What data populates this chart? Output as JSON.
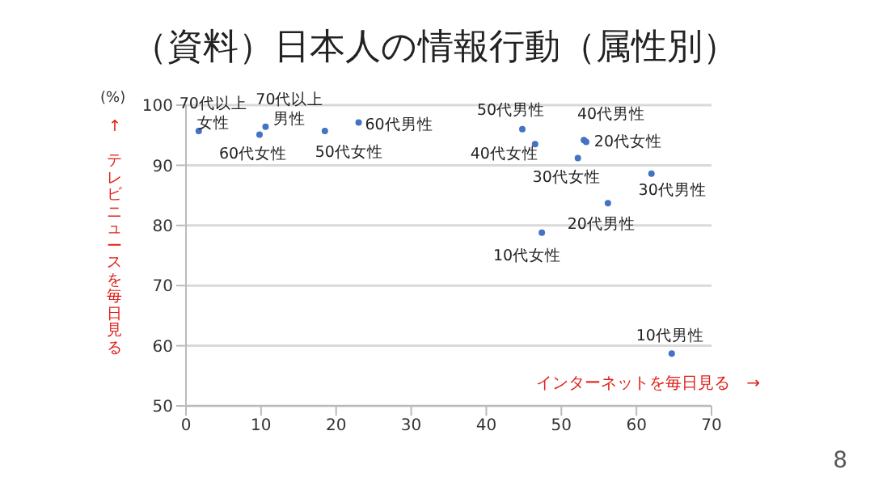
{
  "chart_data": {
    "type": "scatter",
    "title": "（資料）日本人の情報行動（属性別）",
    "xlabel": "インターネットを毎日見る　→",
    "ylabel": "↑　テレビニュースを毎日見る",
    "series": [
      {
        "color": "#4472c4",
        "x": [
          1.7,
          9.8,
          10.6,
          18.5,
          23.0,
          44.8,
          46.5,
          53.0,
          53.3,
          52.2,
          62.0,
          56.2,
          47.4,
          64.7
        ],
        "values": [
          95.7,
          95.1,
          96.4,
          95.7,
          97.1,
          96.0,
          93.5,
          94.2,
          93.9,
          91.2,
          88.6,
          83.7,
          78.8,
          58.7
        ]
      }
    ],
    "xlim": [
      0,
      70
    ],
    "xticks": [
      0,
      10,
      20,
      30,
      40,
      50,
      60,
      70
    ],
    "ylim": [
      50,
      100
    ],
    "yticks": [
      50,
      60,
      70,
      80,
      90,
      100
    ],
    "grid": "y",
    "marker": "circle",
    "annotations": [
      {
        "text": "70代以上女性",
        "x": 1.7,
        "y": 95.7
      },
      {
        "text": "60代女性",
        "x": 9.8,
        "y": 95.1
      },
      {
        "text": "70代以上男性",
        "x": 10.6,
        "y": 96.4
      },
      {
        "text": "50代女性",
        "x": 18.5,
        "y": 95.7
      },
      {
        "text": "60代男性",
        "x": 23.0,
        "y": 97.1
      },
      {
        "text": "50代男性",
        "x": 44.8,
        "y": 96.0
      },
      {
        "text": "40代女性",
        "x": 46.5,
        "y": 93.5
      },
      {
        "text": "40代男性",
        "x": 53.0,
        "y": 94.2
      },
      {
        "text": "20代女性",
        "x": 53.3,
        "y": 93.9
      },
      {
        "text": "30代女性",
        "x": 52.2,
        "y": 91.2
      },
      {
        "text": "30代男性",
        "x": 62.0,
        "y": 88.6
      },
      {
        "text": "20代男性",
        "x": 56.2,
        "y": 83.7
      },
      {
        "text": "10代女性",
        "x": 47.4,
        "y": 78.8
      },
      {
        "text": "10代男性",
        "x": 64.7,
        "y": 58.7
      },
      "(%)",
      "8"
    ]
  }
}
